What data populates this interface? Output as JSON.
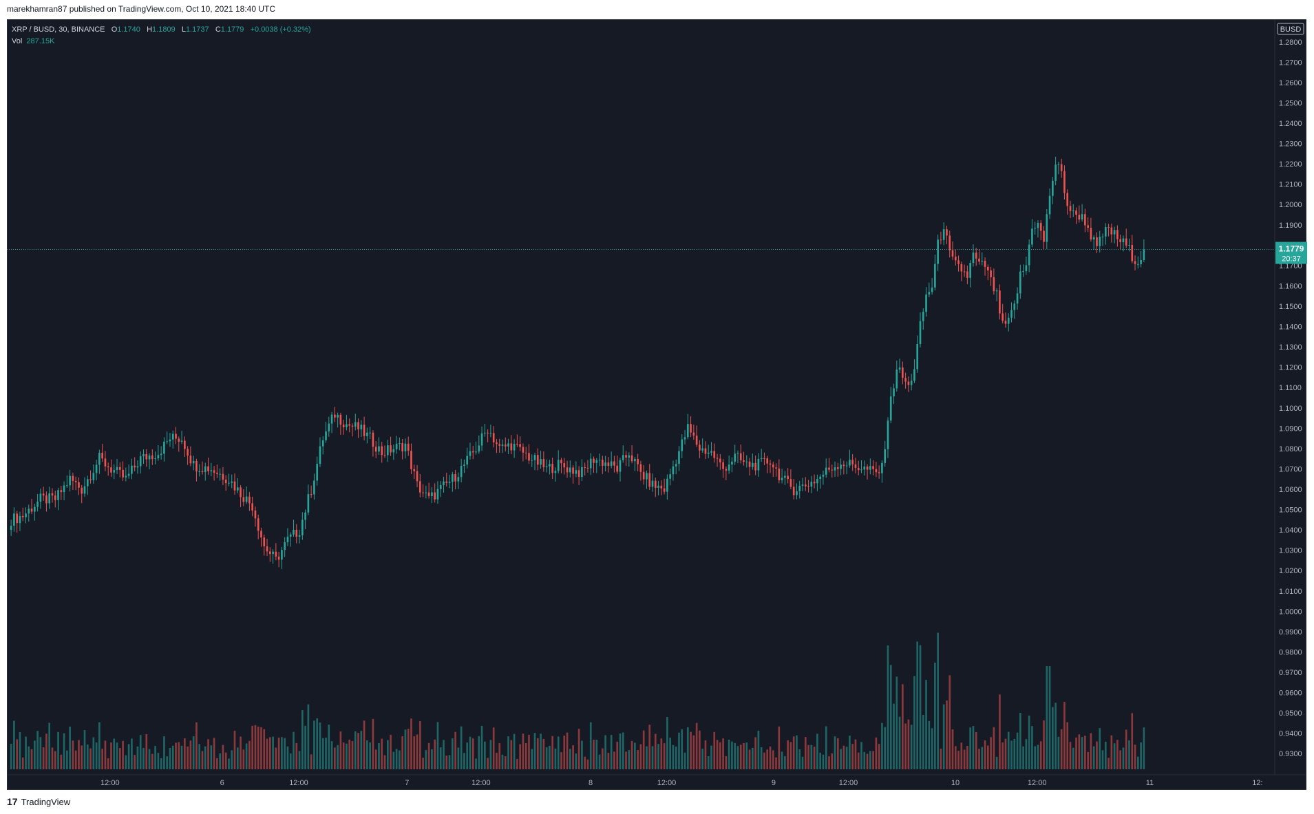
{
  "header": {
    "publisher_line": "marekhamran87 published on TradingView.com, Oct 10, 2021 18:40 UTC"
  },
  "legend": {
    "symbol": "XRP / BUSD, 30, BINANCE",
    "o_label": "O",
    "o_value": "1.1740",
    "h_label": "H",
    "h_value": "1.1809",
    "l_label": "L",
    "l_value": "1.1737",
    "c_label": "C",
    "c_value": "1.1779",
    "change": "+0.0038 (+0.32%)",
    "vol_label": "Vol",
    "vol_value": "287.15K"
  },
  "price_axis": {
    "currency_badge": "BUSD",
    "last_price": "1.1779",
    "countdown": "20:37"
  },
  "brand": {
    "name": "TradingView"
  },
  "colors": {
    "up": "#26a69a",
    "down": "#ef5350",
    "background": "#161a25",
    "axis_text": "#b2b5be"
  },
  "chart_data": {
    "type": "candlestick",
    "title": "XRP / BUSD, 30, BINANCE",
    "interval": "30",
    "ylim": [
      0.925,
      1.285
    ],
    "y_ticks": [
      "1.2800",
      "1.2700",
      "1.2600",
      "1.2500",
      "1.2400",
      "1.2300",
      "1.2200",
      "1.2100",
      "1.2000",
      "1.1900",
      "1.1700",
      "1.1600",
      "1.1500",
      "1.1400",
      "1.1300",
      "1.1200",
      "1.1100",
      "1.1000",
      "1.0900",
      "1.0800",
      "1.0700",
      "1.0600",
      "1.0500",
      "1.0400",
      "1.0300",
      "1.0200",
      "1.0100",
      "1.0000",
      "0.9900",
      "0.9800",
      "0.9700",
      "0.9600",
      "0.9500",
      "0.9400",
      "0.9300"
    ],
    "x_ticks": [
      "12:00",
      "6",
      "12:00",
      "7",
      "12:00",
      "8",
      "12:00",
      "9",
      "12:00",
      "10",
      "12:00",
      "11",
      "12:"
    ],
    "last_price": 1.1779,
    "keypoints": [
      [
        0,
        1.045
      ],
      [
        4,
        1.047
      ],
      [
        10,
        1.055
      ],
      [
        15,
        1.055
      ],
      [
        20,
        1.065
      ],
      [
        24,
        1.06
      ],
      [
        30,
        1.075
      ],
      [
        34,
        1.07
      ],
      [
        39,
        1.065
      ],
      [
        44,
        1.075
      ],
      [
        50,
        1.078
      ],
      [
        54,
        1.085
      ],
      [
        58,
        1.085
      ],
      [
        62,
        1.072
      ],
      [
        68,
        1.07
      ],
      [
        74,
        1.065
      ],
      [
        78,
        1.058
      ],
      [
        82,
        1.052
      ],
      [
        86,
        1.032
      ],
      [
        90,
        1.025
      ],
      [
        94,
        1.035
      ],
      [
        98,
        1.04
      ],
      [
        102,
        1.06
      ],
      [
        106,
        1.085
      ],
      [
        110,
        1.097
      ],
      [
        114,
        1.092
      ],
      [
        118,
        1.09
      ],
      [
        122,
        1.085
      ],
      [
        126,
        1.078
      ],
      [
        130,
        1.08
      ],
      [
        134,
        1.082
      ],
      [
        138,
        1.062
      ],
      [
        142,
        1.055
      ],
      [
        146,
        1.06
      ],
      [
        150,
        1.065
      ],
      [
        154,
        1.072
      ],
      [
        158,
        1.08
      ],
      [
        162,
        1.09
      ],
      [
        166,
        1.08
      ],
      [
        170,
        1.082
      ],
      [
        174,
        1.078
      ],
      [
        178,
        1.074
      ],
      [
        182,
        1.07
      ],
      [
        186,
        1.072
      ],
      [
        190,
        1.07
      ],
      [
        194,
        1.068
      ],
      [
        198,
        1.075
      ],
      [
        202,
        1.073
      ],
      [
        206,
        1.07
      ],
      [
        210,
        1.078
      ],
      [
        214,
        1.068
      ],
      [
        218,
        1.062
      ],
      [
        222,
        1.06
      ],
      [
        226,
        1.075
      ],
      [
        230,
        1.09
      ],
      [
        234,
        1.08
      ],
      [
        238,
        1.078
      ],
      [
        242,
        1.07
      ],
      [
        246,
        1.076
      ],
      [
        250,
        1.072
      ],
      [
        254,
        1.072
      ],
      [
        258,
        1.074
      ],
      [
        262,
        1.065
      ],
      [
        266,
        1.06
      ],
      [
        270,
        1.062
      ],
      [
        274,
        1.065
      ],
      [
        278,
        1.07
      ],
      [
        282,
        1.073
      ],
      [
        286,
        1.072
      ],
      [
        290,
        1.07
      ],
      [
        294,
        1.068
      ],
      [
        296,
        1.07
      ],
      [
        298,
        1.095
      ],
      [
        301,
        1.12
      ],
      [
        303,
        1.115
      ],
      [
        305,
        1.11
      ],
      [
        307,
        1.12
      ],
      [
        309,
        1.14
      ],
      [
        311,
        1.155
      ],
      [
        313,
        1.16
      ],
      [
        315,
        1.18
      ],
      [
        317,
        1.19
      ],
      [
        319,
        1.175
      ],
      [
        321,
        1.17
      ],
      [
        323,
        1.168
      ],
      [
        325,
        1.165
      ],
      [
        327,
        1.175
      ],
      [
        329,
        1.17
      ],
      [
        331,
        1.17
      ],
      [
        333,
        1.162
      ],
      [
        335,
        1.155
      ],
      [
        337,
        1.14
      ],
      [
        339,
        1.142
      ],
      [
        341,
        1.15
      ],
      [
        343,
        1.165
      ],
      [
        345,
        1.17
      ],
      [
        347,
        1.19
      ],
      [
        349,
        1.19
      ],
      [
        351,
        1.182
      ],
      [
        353,
        1.205
      ],
      [
        355,
        1.22
      ],
      [
        357,
        1.215
      ],
      [
        359,
        1.2
      ],
      [
        361,
        1.195
      ],
      [
        363,
        1.195
      ],
      [
        365,
        1.192
      ],
      [
        367,
        1.185
      ],
      [
        369,
        1.178
      ],
      [
        371,
        1.185
      ],
      [
        373,
        1.188
      ],
      [
        375,
        1.185
      ],
      [
        377,
        1.182
      ],
      [
        379,
        1.18
      ],
      [
        381,
        1.175
      ],
      [
        383,
        1.172
      ],
      [
        385,
        1.1779
      ]
    ],
    "volume_note": "Volume bars shown in lower pane, colored by candle direction"
  }
}
